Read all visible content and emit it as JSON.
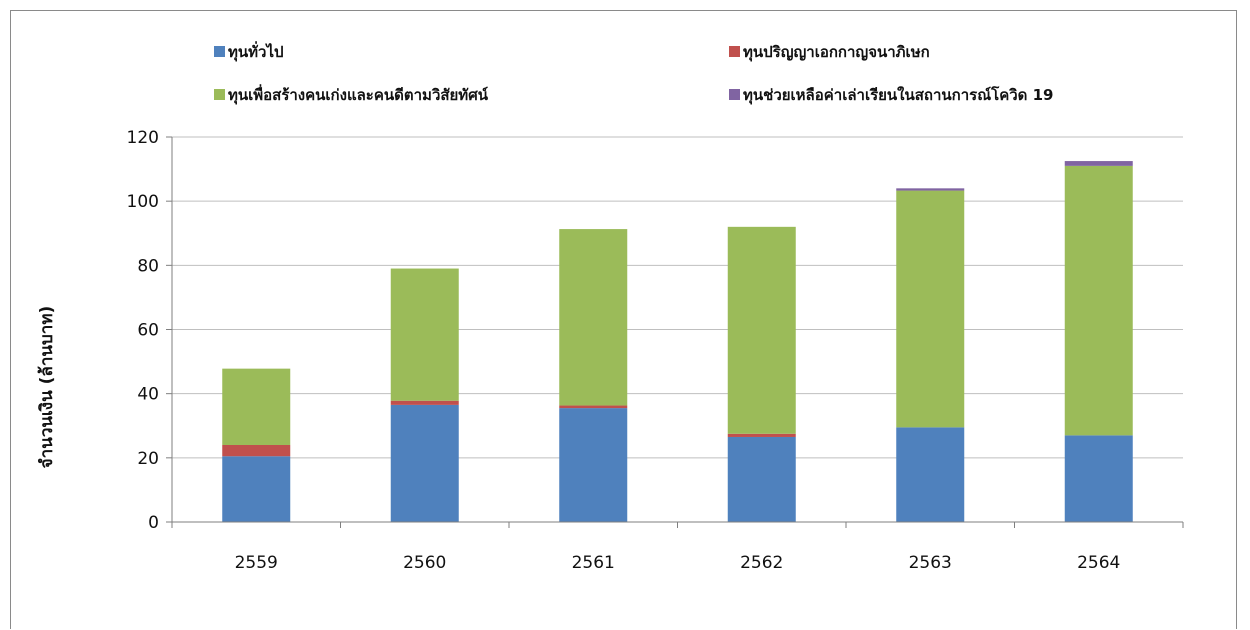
{
  "chart_data": {
    "type": "bar",
    "stacked": true,
    "categories": [
      "2559",
      "2560",
      "2561",
      "2562",
      "2563",
      "2564"
    ],
    "series": [
      {
        "name": "ทุนทั่วไป",
        "color": "#4f81bd",
        "values": [
          20.5,
          36.5,
          35.5,
          26.5,
          29.5,
          27.0
        ]
      },
      {
        "name": "ทุนปริญญาเอกกาญจนาภิเษก",
        "color": "#c0504d",
        "values": [
          3.5,
          1.3,
          0.8,
          1.0,
          0,
          0
        ]
      },
      {
        "name": "ทุนเพื่อสร้างคนเก่งและคนดีตามวิสัยทัศน์",
        "color": "#9bbb59",
        "values": [
          23.8,
          41.2,
          55.0,
          64.5,
          73.8,
          84.0
        ]
      },
      {
        "name": "ทุนช่วยเหลือค่าเล่าเรียนในสถานการณ์โควิด 19",
        "color": "#8064a2",
        "values": [
          0,
          0,
          0,
          0,
          0.7,
          1.5
        ]
      }
    ],
    "title": "",
    "xlabel": "",
    "ylabel": "จำนวนเงิน (ล้านบาท)",
    "ylim": [
      0,
      120
    ],
    "yticks": [
      "0",
      "20",
      "40",
      "60",
      "80",
      "100",
      "120"
    ],
    "grid": true,
    "legend_position": "top"
  }
}
